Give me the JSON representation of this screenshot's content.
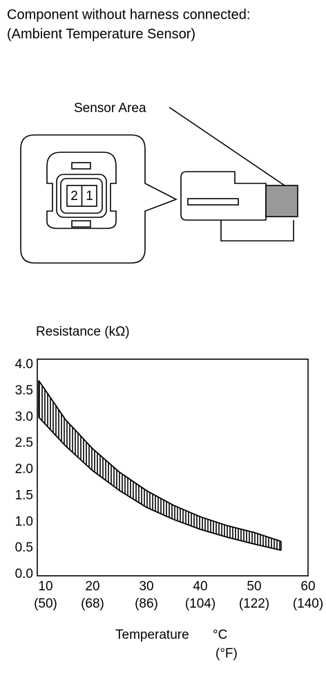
{
  "header": {
    "line1": "Component without harness connected:",
    "line2": "(Ambient Temperature Sensor)"
  },
  "diagram": {
    "sensor_label": "Sensor Area",
    "pin_left": "2",
    "pin_right": "1"
  },
  "chart_data": {
    "type": "band",
    "ylabel": "Resistance (kΩ)",
    "xlabel": "Temperature",
    "xunit": "°C",
    "xunit_secondary": "(°F)",
    "x": [
      10,
      15,
      20,
      25,
      30,
      35,
      40,
      45,
      50,
      55
    ],
    "series": [
      {
        "color": "#000000",
        "values": [
          3.7,
          2.95,
          2.4,
          1.95,
          1.6,
          1.32,
          1.1,
          0.93,
          0.8,
          0.63
        ]
      },
      {
        "color": "#000000",
        "values": [
          3.0,
          2.45,
          1.98,
          1.6,
          1.28,
          1.05,
          0.86,
          0.71,
          0.58,
          0.46
        ]
      }
    ],
    "fill": "#888888",
    "xlim": [
      10,
      60
    ],
    "ylim": [
      0,
      4
    ],
    "xticks": [
      10,
      20,
      30,
      40,
      50,
      60
    ],
    "xticks_secondary": [
      "(50)",
      "(68)",
      "(86)",
      "(104)",
      "(122)",
      "(140)"
    ],
    "yticks": [
      {
        "value": 0,
        "label": "0.0"
      },
      {
        "value": 0.5,
        "label": "0.5"
      },
      {
        "value": 1,
        "label": "1.0"
      },
      {
        "value": 1.5,
        "label": "1.5"
      },
      {
        "value": 2,
        "label": "2.0"
      },
      {
        "value": 2.5,
        "label": "2.5"
      },
      {
        "value": 3,
        "label": "3.0"
      },
      {
        "value": 3.5,
        "label": "3.5"
      },
      {
        "value": 4,
        "label": "4.0"
      }
    ]
  }
}
